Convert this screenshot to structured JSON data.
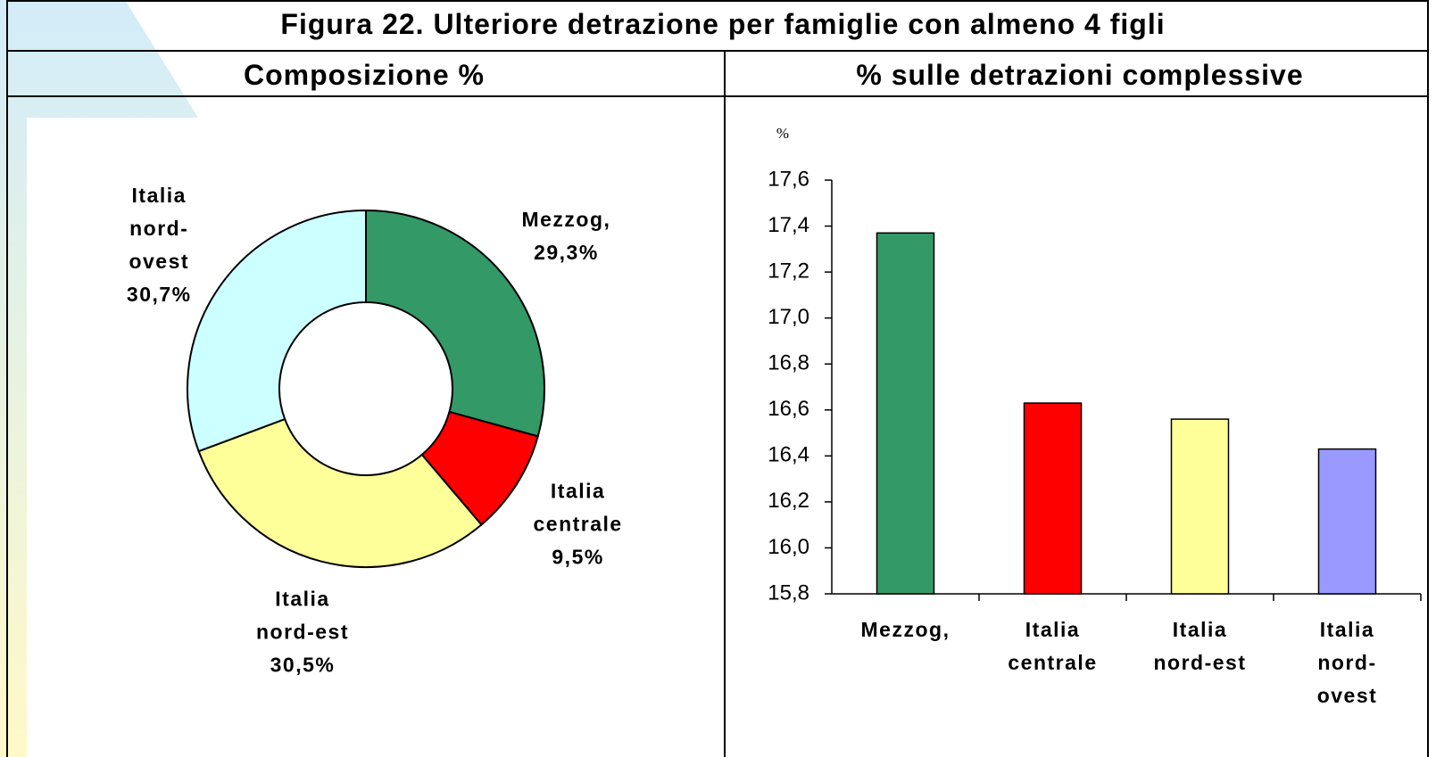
{
  "title": "Figura 22. Ulteriore detrazione per famiglie con almeno 4 figli",
  "chart_data": [
    {
      "type": "donut",
      "title": "Composizione %",
      "categories": [
        "Mezzog,",
        "Italia centrale",
        "Italia nord-est",
        "Italia nord-ovest"
      ],
      "values": [
        29.3,
        9.5,
        30.5,
        30.7
      ],
      "value_labels": [
        "29,3%",
        "9,5%",
        "30,5%",
        "30,7%"
      ],
      "colors": [
        "#339966",
        "#ff0000",
        "#ffff99",
        "#ccffff"
      ]
    },
    {
      "type": "bar",
      "title": "% sulle detrazioni complessive",
      "ylabel": "%",
      "categories": [
        "Mezzog,",
        "Italia centrale",
        "Italia nord-est",
        "Italia nord-ovest"
      ],
      "values": [
        17.37,
        16.63,
        16.56,
        16.43
      ],
      "colors": [
        "#339966",
        "#ff0000",
        "#ffff99",
        "#9999ff"
      ],
      "ylim": [
        15.8,
        17.6
      ],
      "yticks": [
        {
          "value": 15.8,
          "label": "15,8"
        },
        {
          "value": 16.0,
          "label": "16,0"
        },
        {
          "value": 16.2,
          "label": "16,2"
        },
        {
          "value": 16.4,
          "label": "16,4"
        },
        {
          "value": 16.6,
          "label": "16,6"
        },
        {
          "value": 16.8,
          "label": "16,8"
        },
        {
          "value": 17.0,
          "label": "17,0"
        },
        {
          "value": 17.2,
          "label": "17,2"
        },
        {
          "value": 17.4,
          "label": "17,4"
        },
        {
          "value": 17.6,
          "label": "17,6"
        }
      ],
      "grid": false
    }
  ]
}
